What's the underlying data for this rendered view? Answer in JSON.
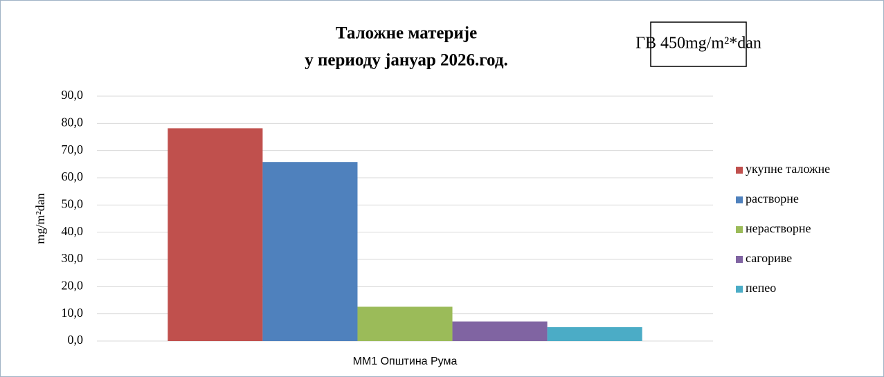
{
  "chart_data": {
    "type": "bar",
    "title": [
      "Таложне материје",
      "у периоду јануар 2026.год."
    ],
    "annotation": "ГВ 450mg/m²*dan",
    "y_label": "mg/m²dan",
    "categories": [
      "ММ1 Општина Рума"
    ],
    "series": [
      {
        "name": "укупне таложне",
        "color": "#c0504d",
        "values": [
          78.2
        ]
      },
      {
        "name": "растворне",
        "color": "#4f81bd",
        "values": [
          65.8
        ]
      },
      {
        "name": "нерастворне",
        "color": "#9bbb59",
        "values": [
          12.6
        ]
      },
      {
        "name": "сагориве",
        "color": "#8064a2",
        "values": [
          7.2
        ]
      },
      {
        "name": "пепео",
        "color": "#4bacc6",
        "values": [
          5.1
        ]
      }
    ],
    "ylim": [
      0,
      90
    ],
    "yticks": [
      {
        "value": 0,
        "label": "0,0"
      },
      {
        "value": 10,
        "label": "10,0"
      },
      {
        "value": 20,
        "label": "20,0"
      },
      {
        "value": 30,
        "label": "30,0"
      },
      {
        "value": 40,
        "label": "40,0"
      },
      {
        "value": 50,
        "label": "50,0"
      },
      {
        "value": 60,
        "label": "60,0"
      },
      {
        "value": 70,
        "label": "70,0"
      },
      {
        "value": 80,
        "label": "80,0"
      },
      {
        "value": 90,
        "label": "90,0"
      }
    ],
    "grid": true,
    "legend": "right"
  }
}
